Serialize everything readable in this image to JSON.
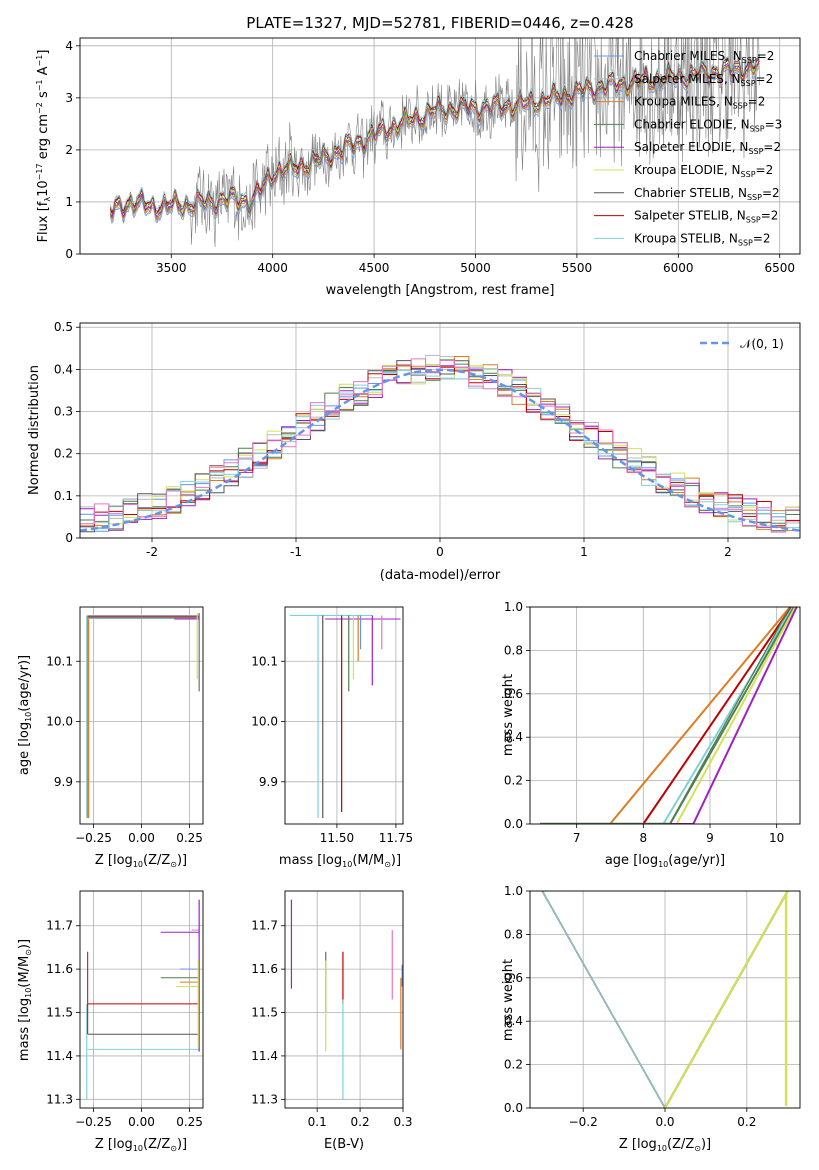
{
  "title": "PLATE=1327, MJD=52781, FIBERID=0446, z=0.428",
  "colors": {
    "Chabrier MILES": "#6495ed",
    "Salpeter MILES": "#b8b8b8",
    "Kroupa MILES": "#e07b1f",
    "Chabrier ELODIE": "#4f7f4f",
    "Salpeter ELODIE": "#a020c0",
    "Kroupa ELODIE": "#d4e157",
    "Chabrier STELIB": "#555555",
    "Salpeter STELIB": "#c00000",
    "Kroupa STELIB": "#80d0d8",
    "data": "#808080",
    "gaussian": "#6495ed",
    "pink": "#e377c2"
  },
  "legend_spectra": [
    {
      "name": "Chabrier MILES",
      "nssp": "2"
    },
    {
      "name": "Salpeter MILES",
      "nssp": "2"
    },
    {
      "name": "Kroupa MILES",
      "nssp": "2"
    },
    {
      "name": "Chabrier ELODIE",
      "nssp": "3"
    },
    {
      "name": "Salpeter ELODIE",
      "nssp": "2"
    },
    {
      "name": "Kroupa ELODIE",
      "nssp": "2"
    },
    {
      "name": "Chabrier STELIB",
      "nssp": "2"
    },
    {
      "name": "Salpeter STELIB",
      "nssp": "2"
    },
    {
      "name": "Kroupa STELIB",
      "nssp": "2"
    }
  ],
  "legend_norm": "𝒩(0, 1)",
  "chart_data": [
    {
      "id": "spectrum",
      "type": "line",
      "xlabel": "wavelength [Angstrom, rest frame]",
      "ylabel": "Flux [f",
      "xlim": [
        3050,
        6600
      ],
      "ylim": [
        0,
        4.15
      ],
      "xticks": [
        3500,
        4000,
        4500,
        5000,
        5500,
        6000,
        6500
      ],
      "yticks": [
        0,
        1,
        2,
        3,
        4
      ],
      "wavelength_range": [
        3200,
        6400
      ],
      "model_trend": [
        [
          3200,
          0.8
        ],
        [
          3300,
          1.0
        ],
        [
          3400,
          0.9
        ],
        [
          3600,
          0.95
        ],
        [
          3800,
          1.05
        ],
        [
          3900,
          1.0
        ],
        [
          4000,
          1.55
        ],
        [
          4200,
          1.75
        ],
        [
          4400,
          2.1
        ],
        [
          4600,
          2.45
        ],
        [
          4800,
          2.75
        ],
        [
          5000,
          2.8
        ],
        [
          5200,
          2.85
        ],
        [
          5400,
          3.0
        ],
        [
          5600,
          3.2
        ],
        [
          5800,
          3.3
        ],
        [
          6000,
          3.4
        ],
        [
          6200,
          3.5
        ],
        [
          6400,
          3.6
        ]
      ]
    },
    {
      "id": "residuals",
      "type": "step",
      "xlabel": "(data-model)/error",
      "ylabel": "Normed distribution",
      "xlim": [
        -2.5,
        2.5
      ],
      "ylim": [
        0,
        0.51
      ],
      "xticks": [
        -2,
        -1,
        0,
        1,
        2
      ],
      "yticks": [
        0.0,
        0.1,
        0.2,
        0.3,
        0.4,
        0.5
      ],
      "bin_width": 0.1
    },
    {
      "id": "age_Z",
      "type": "line",
      "xlabel": "Z [log",
      "ylabel": "age  [log",
      "xlim": [
        -0.32,
        0.32
      ],
      "ylim": [
        9.83,
        10.19
      ],
      "xticks": [
        -0.25,
        0.0,
        0.25
      ],
      "xticklabels": [
        "−0.25",
        "0.00",
        "0.25"
      ],
      "yticks": [
        9.9,
        10.0,
        10.1
      ],
      "yticklabels": [
        "9.9",
        "10.0",
        "10.1"
      ],
      "mean_age": 10.176,
      "mean_Z": 0.3
    },
    {
      "id": "age_mass",
      "type": "line",
      "xlabel": "mass [log",
      "ylabel": "",
      "xlim": [
        11.28,
        11.78
      ],
      "ylim": [
        9.83,
        10.19
      ],
      "xticks": [
        11.5,
        11.75
      ],
      "xticklabels": [
        "11.50",
        "11.75"
      ],
      "yticks": [
        9.9,
        10.0,
        10.1
      ],
      "yticklabels": [
        "9.9",
        "10.0",
        "10.1"
      ],
      "masses": [
        11.42,
        11.44,
        11.52,
        11.55,
        11.57,
        11.59,
        11.6,
        11.65,
        11.69
      ]
    },
    {
      "id": "cum_age",
      "type": "line",
      "xlabel": "age  [log",
      "ylabel": "mass weight",
      "xlim": [
        6.3,
        10.35
      ],
      "ylim": [
        0,
        1.0
      ],
      "xticks": [
        7,
        8,
        9,
        10
      ],
      "xticklabels": [
        "7",
        "8",
        "9",
        "10"
      ],
      "yticks": [
        0.0,
        0.2,
        0.4,
        0.6,
        0.8,
        1.0
      ],
      "yticklabels": [
        "0.0",
        "0.2",
        "0.4",
        "0.6",
        "0.8",
        "1.0"
      ],
      "start_ages": [
        7.5,
        8.0,
        8.3,
        8.4,
        8.5,
        8.75
      ],
      "end_age": 10.2
    },
    {
      "id": "mass_Z",
      "type": "line",
      "xlabel": "Z [log",
      "ylabel": "mass [log",
      "xlim": [
        -0.32,
        0.32
      ],
      "ylim": [
        11.28,
        11.78
      ],
      "xticks": [
        -0.25,
        0.0,
        0.25
      ],
      "xticklabels": [
        "−0.25",
        "0.00",
        "0.25"
      ],
      "yticks": [
        11.3,
        11.4,
        11.5,
        11.6,
        11.7
      ],
      "yticklabels": [
        "11.3",
        "11.4",
        "11.5",
        "11.6",
        "11.7"
      ],
      "horizontal_levels": [
        11.415,
        11.45,
        11.52,
        11.56,
        11.58,
        11.6,
        11.685,
        11.69
      ]
    },
    {
      "id": "mass_ebv",
      "type": "line",
      "xlabel": "E(B-V)",
      "ylabel": "",
      "xlim": [
        0.025,
        0.3
      ],
      "ylim": [
        11.28,
        11.78
      ],
      "xticks": [
        0.1,
        0.2,
        0.3
      ],
      "xticklabels": [
        "0.1",
        "0.2",
        "0.3"
      ],
      "yticks": [
        11.3,
        11.4,
        11.5,
        11.6,
        11.7
      ],
      "yticklabels": [
        "11.3",
        "11.4",
        "11.5",
        "11.6",
        "11.7"
      ],
      "ebv_values": [
        0.04,
        0.12,
        0.16,
        0.16,
        0.275,
        0.295
      ]
    },
    {
      "id": "cum_Z",
      "type": "line",
      "xlabel": "Z [log",
      "ylabel": "mass weight",
      "xlim": [
        -0.33,
        0.33
      ],
      "ylim": [
        0,
        1.0
      ],
      "xticks": [
        -0.2,
        0.0,
        0.2
      ],
      "xticklabels": [
        "−0.2",
        "0.0",
        "0.2"
      ],
      "yticks": [
        0.0,
        0.2,
        0.4,
        0.6,
        0.8,
        1.0
      ],
      "yticklabels": [
        "0.0",
        "0.2",
        "0.4",
        "0.6",
        "0.8",
        "1.0"
      ]
    }
  ]
}
